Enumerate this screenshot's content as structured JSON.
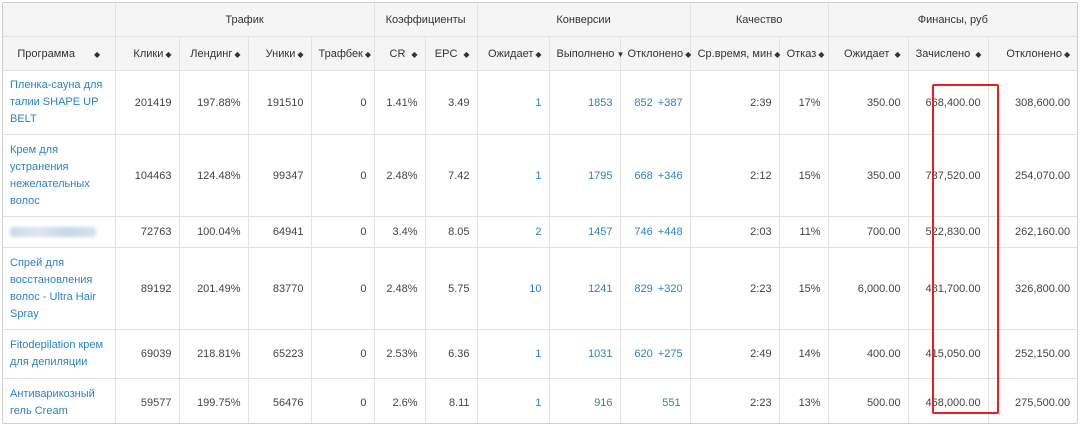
{
  "groups": {
    "traffic": "Трафик",
    "coefficients": "Коэффициенты",
    "conversions": "Конверсии",
    "quality": "Качество",
    "finance": "Финансы, руб"
  },
  "columns": {
    "program": "Программа",
    "clicks": "Клики",
    "landing": "Лендинг",
    "uniques": "Уники",
    "trafback": "Трафбек",
    "cr": "CR",
    "epc": "EPC",
    "conv_pending": "Ожидает",
    "conv_done": "Выполнено",
    "conv_rejected": "Отклонено",
    "avg_time": "Ср.время, мин",
    "bounce": "Отказ",
    "fin_pending": "Ожидает",
    "fin_credited": "Зачислено",
    "fin_rejected": "Отклонено"
  },
  "rows": [
    {
      "program": "Пленка-сауна для талии SHAPE UP BELT",
      "clicks": "201419",
      "landing": "197.88%",
      "uniques": "191510",
      "trafback": "0",
      "cr": "1.41%",
      "epc": "3.49",
      "conv_pending": "1",
      "conv_done": "1853",
      "conv_rejected": "852",
      "conv_rejected_plus": "+387",
      "avg_time": "2:39",
      "bounce": "17%",
      "fin_pending": "350.00",
      "fin_credited": "668,400.00",
      "fin_rejected": "308,600.00"
    },
    {
      "program": "Крем для устранения нежелательных волос",
      "clicks": "104463",
      "landing": "124.48%",
      "uniques": "99347",
      "trafback": "0",
      "cr": "2.48%",
      "epc": "7.42",
      "conv_pending": "1",
      "conv_done": "1795",
      "conv_rejected": "668",
      "conv_rejected_plus": "+346",
      "avg_time": "2:12",
      "bounce": "15%",
      "fin_pending": "350.00",
      "fin_credited": "737,520.00",
      "fin_rejected": "254,070.00"
    },
    {
      "program": "",
      "clicks": "72763",
      "landing": "100.04%",
      "uniques": "64941",
      "trafback": "0",
      "cr": "3.4%",
      "epc": "8.05",
      "conv_pending": "2",
      "conv_done": "1457",
      "conv_rejected": "746",
      "conv_rejected_plus": "+448",
      "avg_time": "2:03",
      "bounce": "11%",
      "fin_pending": "700.00",
      "fin_credited": "522,830.00",
      "fin_rejected": "262,160.00"
    },
    {
      "program": "Спрей для восстановления волос - Ultra Hair Spray",
      "clicks": "89192",
      "landing": "201.49%",
      "uniques": "83770",
      "trafback": "0",
      "cr": "2.48%",
      "epc": "5.75",
      "conv_pending": "10",
      "conv_done": "1241",
      "conv_rejected": "829",
      "conv_rejected_plus": "+320",
      "avg_time": "2:23",
      "bounce": "15%",
      "fin_pending": "6,000.00",
      "fin_credited": "481,700.00",
      "fin_rejected": "326,800.00"
    },
    {
      "program": "Fitodepilation крем для депиляции",
      "clicks": "69039",
      "landing": "218.81%",
      "uniques": "65223",
      "trafback": "0",
      "cr": "2.53%",
      "epc": "6.36",
      "conv_pending": "1",
      "conv_done": "1031",
      "conv_rejected": "620",
      "conv_rejected_plus": "+275",
      "avg_time": "2:49",
      "bounce": "14%",
      "fin_pending": "400.00",
      "fin_credited": "415,050.00",
      "fin_rejected": "252,150.00"
    },
    {
      "program": "Антиварикозный гель Cream",
      "clicks": "59577",
      "landing": "199.75%",
      "uniques": "56476",
      "trafback": "0",
      "cr": "2.6%",
      "epc": "8.11",
      "conv_pending": "1",
      "conv_done": "916",
      "conv_rejected": "551",
      "conv_rejected_plus": "",
      "avg_time": "2:23",
      "bounce": "13%",
      "fin_pending": "500.00",
      "fin_credited": "458,000.00",
      "fin_rejected": "275,500.00"
    }
  ],
  "colors": {
    "link": "#2a83c7",
    "header_bg": "#f5f5f5",
    "highlight": "#e8201d"
  }
}
